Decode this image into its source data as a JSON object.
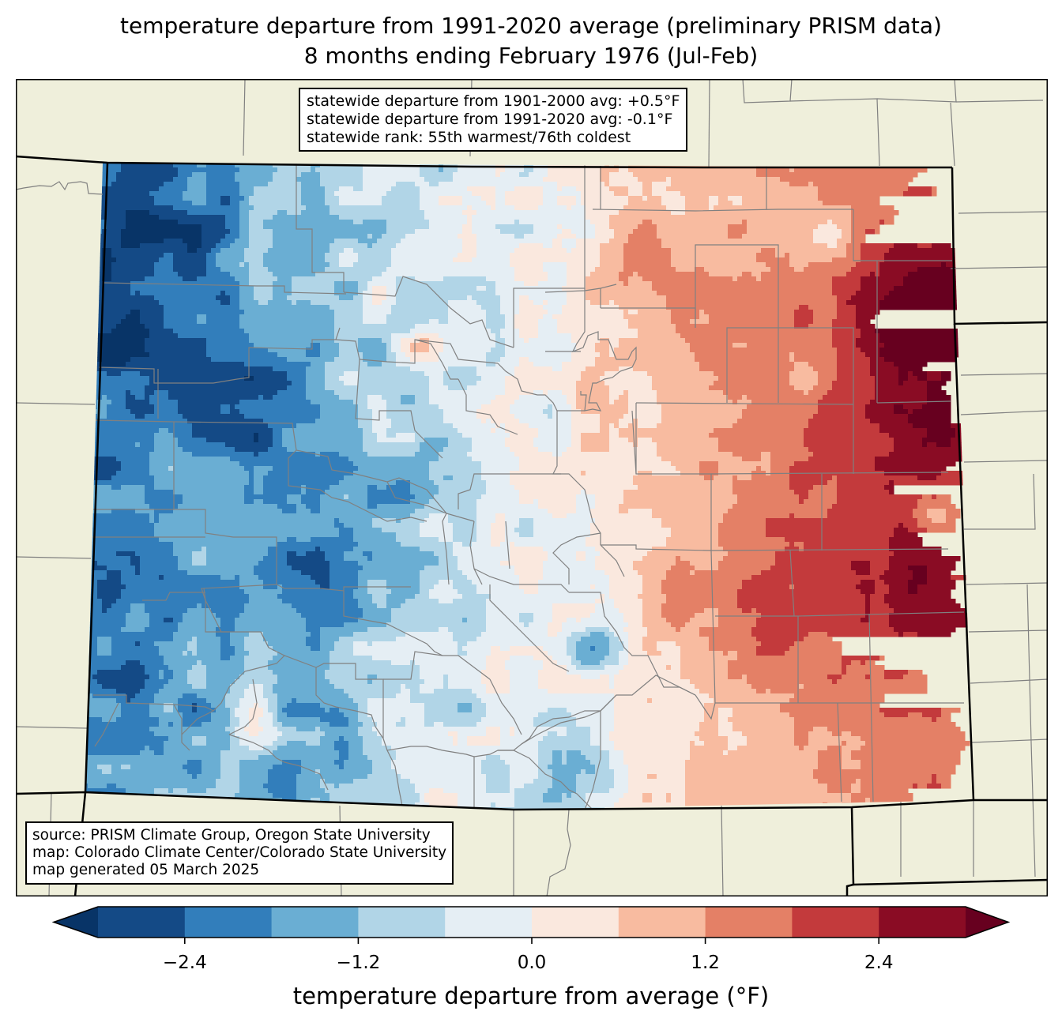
{
  "title": {
    "line1": "temperature departure from 1991-2020 average (preliminary PRISM data)",
    "line2": "8 months ending February 1976 (Jul-Feb)"
  },
  "stats_box": {
    "line1": "statewide departure from 1901-2000 avg: +0.5°F",
    "line2": "statewide departure from 1991-2020 avg: -0.1°F",
    "line3": "statewide rank: 55th warmest/76th coldest"
  },
  "credits_box": {
    "line1": "source: PRISM Climate Group, Oregon State University",
    "line2": "map: Colorado Climate Center/Colorado State University",
    "line3": "map generated 05 March 2025"
  },
  "colorbar": {
    "label": "temperature departure from average (°F)",
    "levels": [
      -3.0,
      -2.4,
      -1.8,
      -1.2,
      -0.6,
      0.0,
      0.6,
      1.2,
      1.8,
      2.4,
      3.0
    ],
    "ticks": [
      "−2.4",
      "−1.2",
      "0.0",
      "1.2",
      "2.4"
    ],
    "tick_values": [
      -2.4,
      -1.2,
      0.0,
      1.2,
      2.4
    ],
    "under_color": "#083467",
    "over_color": "#67001f",
    "colors": [
      "#144a86",
      "#327ebb",
      "#6aaed3",
      "#b1d5e7",
      "#e5eef4",
      "#fae8de",
      "#f8bba0",
      "#e48066",
      "#c33a3c",
      "#8a0c24"
    ]
  },
  "map_colors": {
    "land": "#efefdb",
    "county_line": "#808080",
    "state_line": "#000000"
  },
  "chart_data": {
    "type": "heatmap",
    "title": "temperature departure from 1991-2020 average (preliminary PRISM data) — 8 months ending February 1976 (Jul-Feb)",
    "region": "Colorado",
    "units": "°F",
    "range": [
      -3.0,
      3.0
    ],
    "summary": {
      "departure_1901_2000": 0.5,
      "departure_1991_2020": -0.1,
      "rank_warmest": 55,
      "rank_coldest": 76
    },
    "pattern": "western mountains and western slope below average (-0.6 to -3.0°F); eastern plains above average (+0.6 to +3.0°F), warmest in northeast near Yuma/Phillips counties"
  }
}
